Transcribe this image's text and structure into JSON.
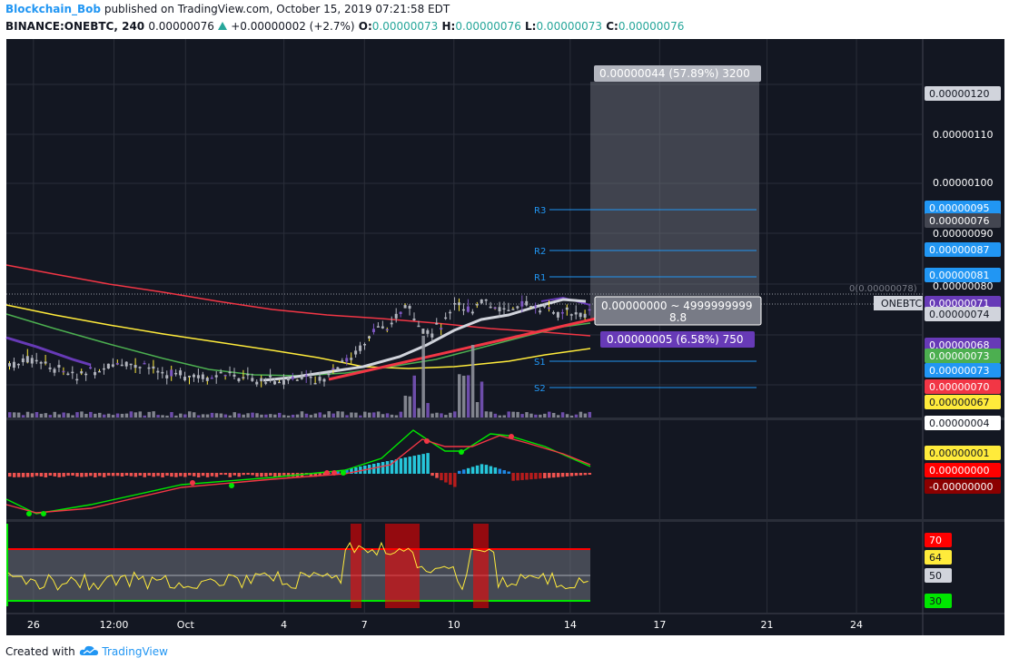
{
  "header": {
    "author": "Blockchain_Bob",
    "published_text": "published on TradingView.com, October 15, 2019 07:21:58 EDT",
    "symbol": "BINANCE:ONEBTC, 240",
    "price": "0.00000076",
    "change": "+0.00000002 (+2.7%)",
    "ohlc": [
      {
        "label": "O:",
        "value": "0.00000073"
      },
      {
        "label": "H:",
        "value": "0.00000076"
      },
      {
        "label": "L:",
        "value": "0.00000073"
      },
      {
        "label": "C:",
        "value": "0.00000076"
      }
    ]
  },
  "price_axis": {
    "plain_labels": [
      "0.00000110",
      "0.00000100",
      "0.00000090",
      "0.00000080"
    ],
    "tags": [
      {
        "text": "0.00000120",
        "bg": "#d1d4dc",
        "fg": "#131722"
      },
      {
        "text": "0.00000095",
        "bg": "#2196f3",
        "fg": "#ffffff"
      },
      {
        "text": "0.00000076",
        "bg": "#434651",
        "fg": "#ffffff"
      },
      {
        "text": "0.00000087",
        "bg": "#2196f3",
        "fg": "#ffffff"
      },
      {
        "text": "0.00000081",
        "bg": "#2196f3",
        "fg": "#ffffff"
      },
      {
        "text": "0.00000071",
        "bg": "#673ab7",
        "fg": "#ffffff"
      },
      {
        "text": "0.00000074",
        "bg": "#d1d4dc",
        "fg": "#131722"
      },
      {
        "text": "0.00000068",
        "bg": "#673ab7",
        "fg": "#ffffff"
      },
      {
        "text": "0.00000073",
        "bg": "#4caf50",
        "fg": "#ffffff"
      },
      {
        "text": "0.00000073",
        "bg": "#2196f3",
        "fg": "#ffffff"
      },
      {
        "text": "0.00000070",
        "bg": "#f23645",
        "fg": "#ffffff"
      },
      {
        "text": "0.00000067",
        "bg": "#ffeb3b",
        "fg": "#131722"
      },
      {
        "text": "0.00000004",
        "bg": "#ffffff",
        "fg": "#131722"
      },
      {
        "text": "0.00000001",
        "bg": "#ffeb3b",
        "fg": "#131722"
      },
      {
        "text": "0.00000000",
        "bg": "#ff0000",
        "fg": "#ffffff"
      },
      {
        "text": "-0.00000000",
        "bg": "#8b0000",
        "fg": "#ffffff"
      },
      {
        "text": "70",
        "bg": "#ff0000",
        "fg": "#ffffff"
      },
      {
        "text": "64",
        "bg": "#ffeb3b",
        "fg": "#131722"
      },
      {
        "text": "50",
        "bg": "#d1d4dc",
        "fg": "#131722"
      },
      {
        "text": "30",
        "bg": "#00e600",
        "fg": "#131722"
      }
    ]
  },
  "pivots": [
    "R3",
    "R2",
    "R1",
    "S1",
    "S2"
  ],
  "fib_label": "0(0.00000078)",
  "symbol_tag": "ONEBTC",
  "measure_top": "0.00000044 (57.89%) 3200",
  "measure_mid_1": "0.00000000 ~ 4999999999",
  "measure_mid_2": "8.8",
  "measure_bot": "0.00000005 (6.58%) 750",
  "time_axis": [
    {
      "label": "26",
      "idx": 1
    },
    {
      "label": "12:00",
      "idx": 10
    },
    {
      "label": "Oct",
      "idx": 18
    },
    {
      "label": "4",
      "idx": 29
    },
    {
      "label": "7",
      "idx": 38
    },
    {
      "label": "10",
      "idx": 48
    },
    {
      "label": "14",
      "idx": 61
    },
    {
      "label": "17",
      "idx": 71
    },
    {
      "label": "21",
      "idx": 83
    },
    {
      "label": "24",
      "idx": 93
    }
  ],
  "colors": {
    "background": "#131722",
    "grid": "#2a2e39",
    "pivot": "#2196f3",
    "ma_red": "#f23645",
    "ma_yellow": "#ffeb3b",
    "ma_green": "#4caf50",
    "ma_white": "#d1d4dc",
    "purple": "#673ab7"
  },
  "footer": {
    "created_with": "Created with",
    "brand": "TradingView"
  }
}
